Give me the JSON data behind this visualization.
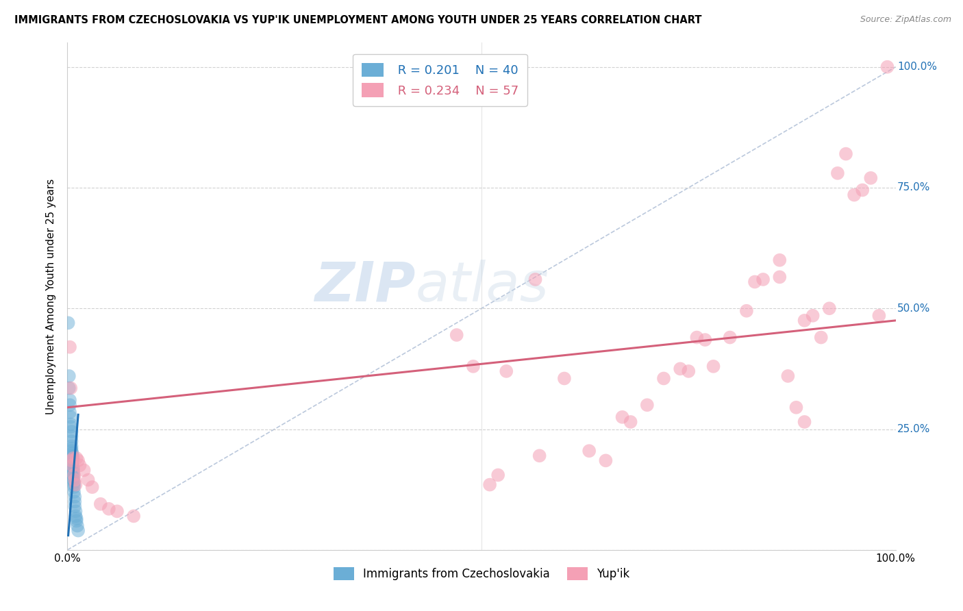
{
  "title": "IMMIGRANTS FROM CZECHOSLOVAKIA VS YUP'IK UNEMPLOYMENT AMONG YOUTH UNDER 25 YEARS CORRELATION CHART",
  "source": "Source: ZipAtlas.com",
  "ylabel": "Unemployment Among Youth under 25 years",
  "legend_blue_r": "R = 0.201",
  "legend_blue_n": "N = 40",
  "legend_pink_r": "R = 0.234",
  "legend_pink_n": "N = 57",
  "watermark_zip": "ZIP",
  "watermark_atlas": "atlas",
  "blue_color": "#6baed6",
  "pink_color": "#f4a0b5",
  "blue_line_color": "#2171b5",
  "pink_line_color": "#d4607a",
  "diagonal_color": "#aabbd4",
  "blue_scatter": [
    [
      0.001,
      0.47
    ],
    [
      0.002,
      0.36
    ],
    [
      0.002,
      0.335
    ],
    [
      0.003,
      0.31
    ],
    [
      0.003,
      0.3
    ],
    [
      0.003,
      0.285
    ],
    [
      0.004,
      0.275
    ],
    [
      0.004,
      0.26
    ],
    [
      0.004,
      0.255
    ],
    [
      0.005,
      0.245
    ],
    [
      0.005,
      0.235
    ],
    [
      0.005,
      0.225
    ],
    [
      0.005,
      0.215
    ],
    [
      0.005,
      0.21
    ],
    [
      0.005,
      0.205
    ],
    [
      0.006,
      0.2
    ],
    [
      0.006,
      0.195
    ],
    [
      0.006,
      0.19
    ],
    [
      0.006,
      0.185
    ],
    [
      0.006,
      0.18
    ],
    [
      0.006,
      0.175
    ],
    [
      0.007,
      0.17
    ],
    [
      0.007,
      0.165
    ],
    [
      0.007,
      0.16
    ],
    [
      0.007,
      0.155
    ],
    [
      0.007,
      0.15
    ],
    [
      0.007,
      0.145
    ],
    [
      0.008,
      0.14
    ],
    [
      0.008,
      0.135
    ],
    [
      0.008,
      0.13
    ],
    [
      0.008,
      0.12
    ],
    [
      0.009,
      0.11
    ],
    [
      0.009,
      0.1
    ],
    [
      0.009,
      0.09
    ],
    [
      0.01,
      0.08
    ],
    [
      0.01,
      0.07
    ],
    [
      0.011,
      0.065
    ],
    [
      0.011,
      0.06
    ],
    [
      0.012,
      0.05
    ],
    [
      0.013,
      0.04
    ]
  ],
  "pink_scatter": [
    [
      0.003,
      0.42
    ],
    [
      0.004,
      0.335
    ],
    [
      0.005,
      0.185
    ],
    [
      0.006,
      0.175
    ],
    [
      0.007,
      0.19
    ],
    [
      0.008,
      0.155
    ],
    [
      0.009,
      0.145
    ],
    [
      0.01,
      0.135
    ],
    [
      0.011,
      0.19
    ],
    [
      0.013,
      0.185
    ],
    [
      0.015,
      0.175
    ],
    [
      0.02,
      0.165
    ],
    [
      0.025,
      0.145
    ],
    [
      0.03,
      0.13
    ],
    [
      0.04,
      0.095
    ],
    [
      0.05,
      0.085
    ],
    [
      0.06,
      0.08
    ],
    [
      0.08,
      0.07
    ],
    [
      0.47,
      0.445
    ],
    [
      0.49,
      0.38
    ],
    [
      0.51,
      0.135
    ],
    [
      0.52,
      0.155
    ],
    [
      0.53,
      0.37
    ],
    [
      0.57,
      0.195
    ],
    [
      0.6,
      0.355
    ],
    [
      0.63,
      0.205
    ],
    [
      0.65,
      0.185
    ],
    [
      0.67,
      0.275
    ],
    [
      0.68,
      0.265
    ],
    [
      0.7,
      0.3
    ],
    [
      0.72,
      0.355
    ],
    [
      0.74,
      0.375
    ],
    [
      0.75,
      0.37
    ],
    [
      0.76,
      0.44
    ],
    [
      0.77,
      0.435
    ],
    [
      0.78,
      0.38
    ],
    [
      0.8,
      0.44
    ],
    [
      0.82,
      0.495
    ],
    [
      0.83,
      0.555
    ],
    [
      0.84,
      0.56
    ],
    [
      0.86,
      0.6
    ],
    [
      0.86,
      0.565
    ],
    [
      0.87,
      0.36
    ],
    [
      0.88,
      0.295
    ],
    [
      0.89,
      0.265
    ],
    [
      0.89,
      0.475
    ],
    [
      0.9,
      0.485
    ],
    [
      0.91,
      0.44
    ],
    [
      0.92,
      0.5
    ],
    [
      0.93,
      0.78
    ],
    [
      0.94,
      0.82
    ],
    [
      0.95,
      0.735
    ],
    [
      0.96,
      0.745
    ],
    [
      0.97,
      0.77
    ],
    [
      0.98,
      0.485
    ],
    [
      0.99,
      1.0
    ],
    [
      0.565,
      0.56
    ]
  ],
  "xlim": [
    0.0,
    1.0
  ],
  "ylim": [
    0.0,
    1.05
  ],
  "ytick_positions": [
    0.0,
    0.25,
    0.5,
    0.75,
    1.0
  ],
  "ytick_labels": [
    "",
    "25.0%",
    "50.0%",
    "75.0%",
    "100.0%"
  ],
  "xtick_positions": [
    0.0,
    0.25,
    0.5,
    0.75,
    1.0
  ],
  "xtick_labels": [
    "0.0%",
    "",
    "",
    "",
    "100.0%"
  ],
  "grid_color": "#cccccc",
  "bg_color": "#ffffff"
}
